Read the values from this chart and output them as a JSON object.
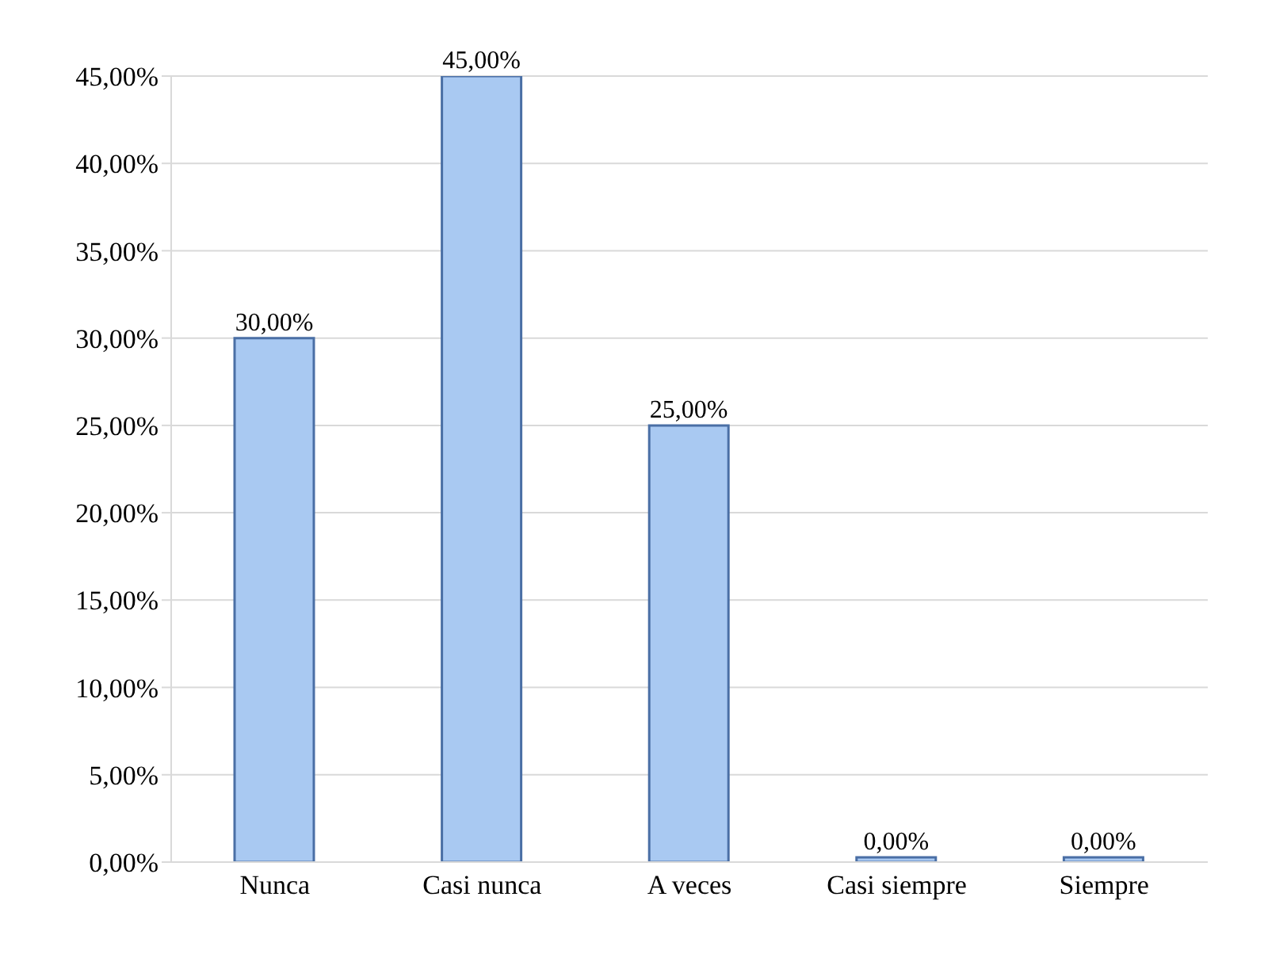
{
  "chart_data": {
    "type": "bar",
    "categories": [
      "Nunca",
      "Casi nunca",
      "A veces",
      "Casi siempre",
      "Siempre"
    ],
    "values": [
      30,
      45,
      25,
      0,
      0
    ],
    "value_labels": [
      "30,00%",
      "45,00%",
      "25,00%",
      "0,00%",
      "0,00%"
    ],
    "color": "#a9c9f2",
    "ylim": [
      0,
      45
    ],
    "yticks": [
      {
        "value": 0,
        "label": "0,00%"
      },
      {
        "value": 5,
        "label": "5,00%"
      },
      {
        "value": 10,
        "label": "10,00%"
      },
      {
        "value": 15,
        "label": "15,00%"
      },
      {
        "value": 20,
        "label": "20,00%"
      },
      {
        "value": 25,
        "label": "25,00%"
      },
      {
        "value": 30,
        "label": "30,00%"
      },
      {
        "value": 35,
        "label": "35,00%"
      },
      {
        "value": 40,
        "label": "40,00%"
      },
      {
        "value": 45,
        "label": "45,00%"
      }
    ],
    "grid": "y",
    "legend": false
  }
}
